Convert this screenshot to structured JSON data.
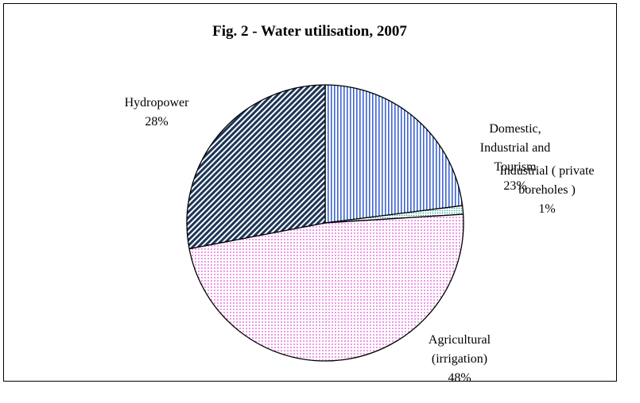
{
  "chart_data": {
    "type": "pie",
    "title": "Fig. 2 - Water utilisation, 2007",
    "categories": [
      "Domestic, Industrial and Tourism",
      "Industrial ( private boreholes )",
      "Agricultural (irrigation)",
      "Hydropower"
    ],
    "values": [
      23,
      1,
      48,
      28
    ],
    "value_labels": [
      "23%",
      "1%",
      "48%",
      "28%"
    ],
    "colors": [
      "#3e64d0",
      "#2aa89a",
      "#e050d8",
      "#1d3557"
    ]
  }
}
